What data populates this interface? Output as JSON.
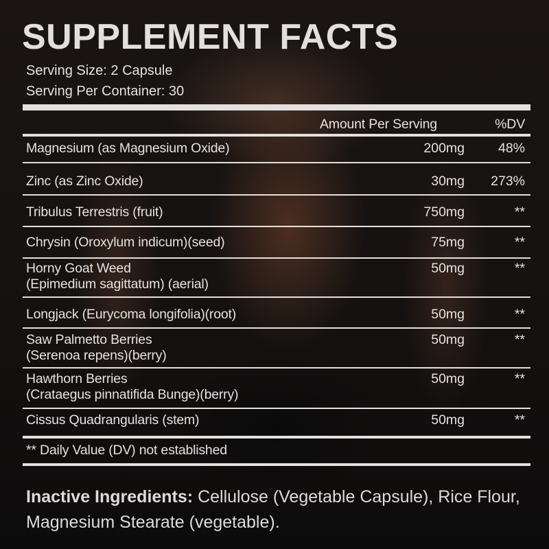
{
  "title": "SUPPLEMENT FACTS",
  "serving_size": "Serving Size: 2 Capsule",
  "servings_per_container": "Serving Per Container: 30",
  "header": {
    "amount": "Amount Per Serving",
    "dv": "%DV"
  },
  "rows": [
    {
      "name": "Magnesium (as Magnesium Oxide)",
      "name2": "",
      "amount": "200mg",
      "dv": "48%"
    },
    {
      "name": "Zinc (as Zinc Oxide)",
      "name2": "",
      "amount": "30mg",
      "dv": "273%"
    },
    {
      "name": "Tribulus Terrestris (fruit)",
      "name2": "",
      "amount": "750mg",
      "dv": "**"
    },
    {
      "name": "Chrysin (Oroxylum indicum)(seed)",
      "name2": "",
      "amount": "75mg",
      "dv": "**"
    },
    {
      "name": "Horny Goat Weed",
      "name2": "(Epimedium sagittatum) (aerial)",
      "amount": "50mg",
      "dv": "**"
    },
    {
      "name": "Longjack (Eurycoma longifolia)(root)",
      "name2": "",
      "amount": "50mg",
      "dv": "**"
    },
    {
      "name": "Saw Palmetto Berries",
      "name2": "(Serenoa repens)(berry)",
      "amount": "50mg",
      "dv": "**"
    },
    {
      "name": "Hawthorn Berries",
      "name2": "(Crataegus pinnatifida Bunge)(berry)",
      "amount": "50mg",
      "dv": "**"
    },
    {
      "name": "Cissus Quadrangularis (stem)",
      "name2": "",
      "amount": "50mg",
      "dv": "**"
    }
  ],
  "footnote": "** Daily Value (DV) not established",
  "inactive": {
    "label": "Inactive Ingredients:",
    "text": " Cellulose (Vegetable Capsule), Rice Flour, Magnesium Stearate (vegetable)."
  }
}
